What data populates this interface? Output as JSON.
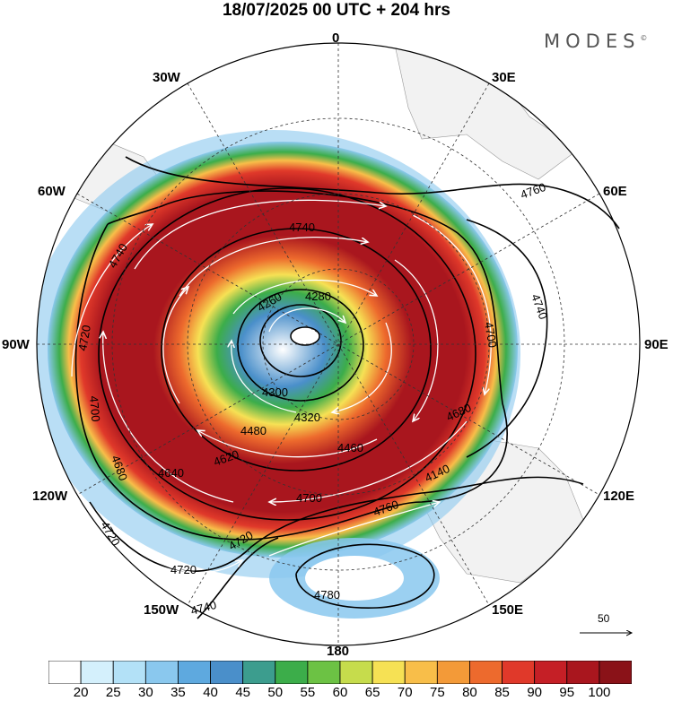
{
  "title": "18/07/2025  00 UTC  + 204 hrs",
  "brand": "MODES",
  "brand_mark": "©",
  "longitude_labels": {
    "top": "0",
    "n30e": "30E",
    "n60e": "60E",
    "e90": "90E",
    "s120e": "120E",
    "s150e": "150E",
    "bottom": "180",
    "s150w": "150W",
    "s120w": "120W",
    "w90": "90W",
    "n60w": "60W",
    "n30w": "30W"
  },
  "scale_arrow": {
    "label": "50"
  },
  "contour_labels": [
    {
      "id": "c4760",
      "text": "4760"
    },
    {
      "id": "c4740a",
      "text": "4740"
    },
    {
      "id": "c4740b",
      "text": "4740"
    },
    {
      "id": "c4740c",
      "text": "4740"
    },
    {
      "id": "c4720a",
      "text": "4720"
    },
    {
      "id": "c4720b",
      "text": "4720"
    },
    {
      "id": "c4720c",
      "text": "4720"
    },
    {
      "id": "c4720d",
      "text": "4720"
    },
    {
      "id": "c4700a",
      "text": "4700"
    },
    {
      "id": "c4700b",
      "text": "4700"
    },
    {
      "id": "c4700c",
      "text": "4700"
    },
    {
      "id": "c4680a",
      "text": "4680"
    },
    {
      "id": "c4680b",
      "text": "4680"
    },
    {
      "id": "c4640",
      "text": "4640"
    },
    {
      "id": "c4620",
      "text": "4620"
    },
    {
      "id": "c4780",
      "text": "4780"
    },
    {
      "id": "c4740d",
      "text": "4740"
    },
    {
      "id": "c4480",
      "text": "4480"
    },
    {
      "id": "c4320",
      "text": "4320"
    },
    {
      "id": "c4300",
      "text": "4300"
    },
    {
      "id": "c4260",
      "text": "4260"
    },
    {
      "id": "c4280",
      "text": "4280"
    },
    {
      "id": "c4140",
      "text": "4140"
    },
    {
      "id": "c4760b",
      "text": "4760"
    },
    {
      "id": "c4460",
      "text": "4460"
    }
  ],
  "colorbar": {
    "colors": [
      "#ffffff",
      "#d4f0fc",
      "#b3e1f7",
      "#8ac8ee",
      "#5ea9df",
      "#4a8fca",
      "#3c9d8e",
      "#3cad4a",
      "#6cc244",
      "#c6dc4c",
      "#f6e154",
      "#f8be49",
      "#f39a38",
      "#ed6a2d",
      "#e0392a",
      "#c51f26",
      "#a9161e",
      "#8a1218"
    ],
    "ticks": [
      "20",
      "25",
      "30",
      "35",
      "40",
      "45",
      "50",
      "55",
      "60",
      "65",
      "70",
      "75",
      "80",
      "85",
      "90",
      "95",
      "100"
    ]
  }
}
